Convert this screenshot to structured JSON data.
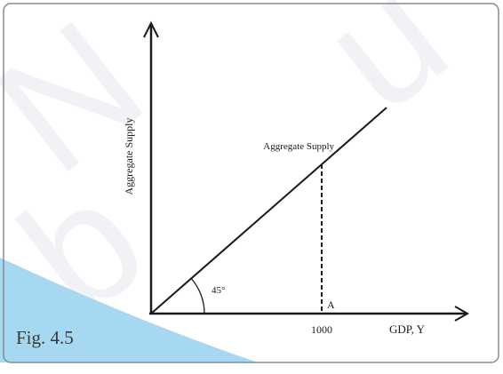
{
  "figure_label": "Fig. 4.5",
  "chart_data": {
    "type": "line",
    "title": "",
    "xlabel": "GDP, Y",
    "ylabel": "Aggregate Supply",
    "series": [
      {
        "name": "Aggregate Supply",
        "x": [
          0,
          1000,
          1380
        ],
        "y": [
          0,
          1000,
          1380
        ]
      }
    ],
    "xticks": [
      1000
    ],
    "annotations": [
      {
        "text": "45°",
        "kind": "angle-at-origin"
      },
      {
        "text": "A",
        "kind": "point-on-x-axis",
        "x": 1000
      },
      {
        "text": "Aggregate Supply",
        "kind": "curve-label"
      }
    ],
    "xlim": [
      0,
      1500
    ],
    "ylim": [
      0,
      1350
    ],
    "grid": false,
    "colors": {
      "line": "#1a1a1a",
      "border": "#8a8a8a",
      "accent": "#a6d8f2"
    }
  }
}
